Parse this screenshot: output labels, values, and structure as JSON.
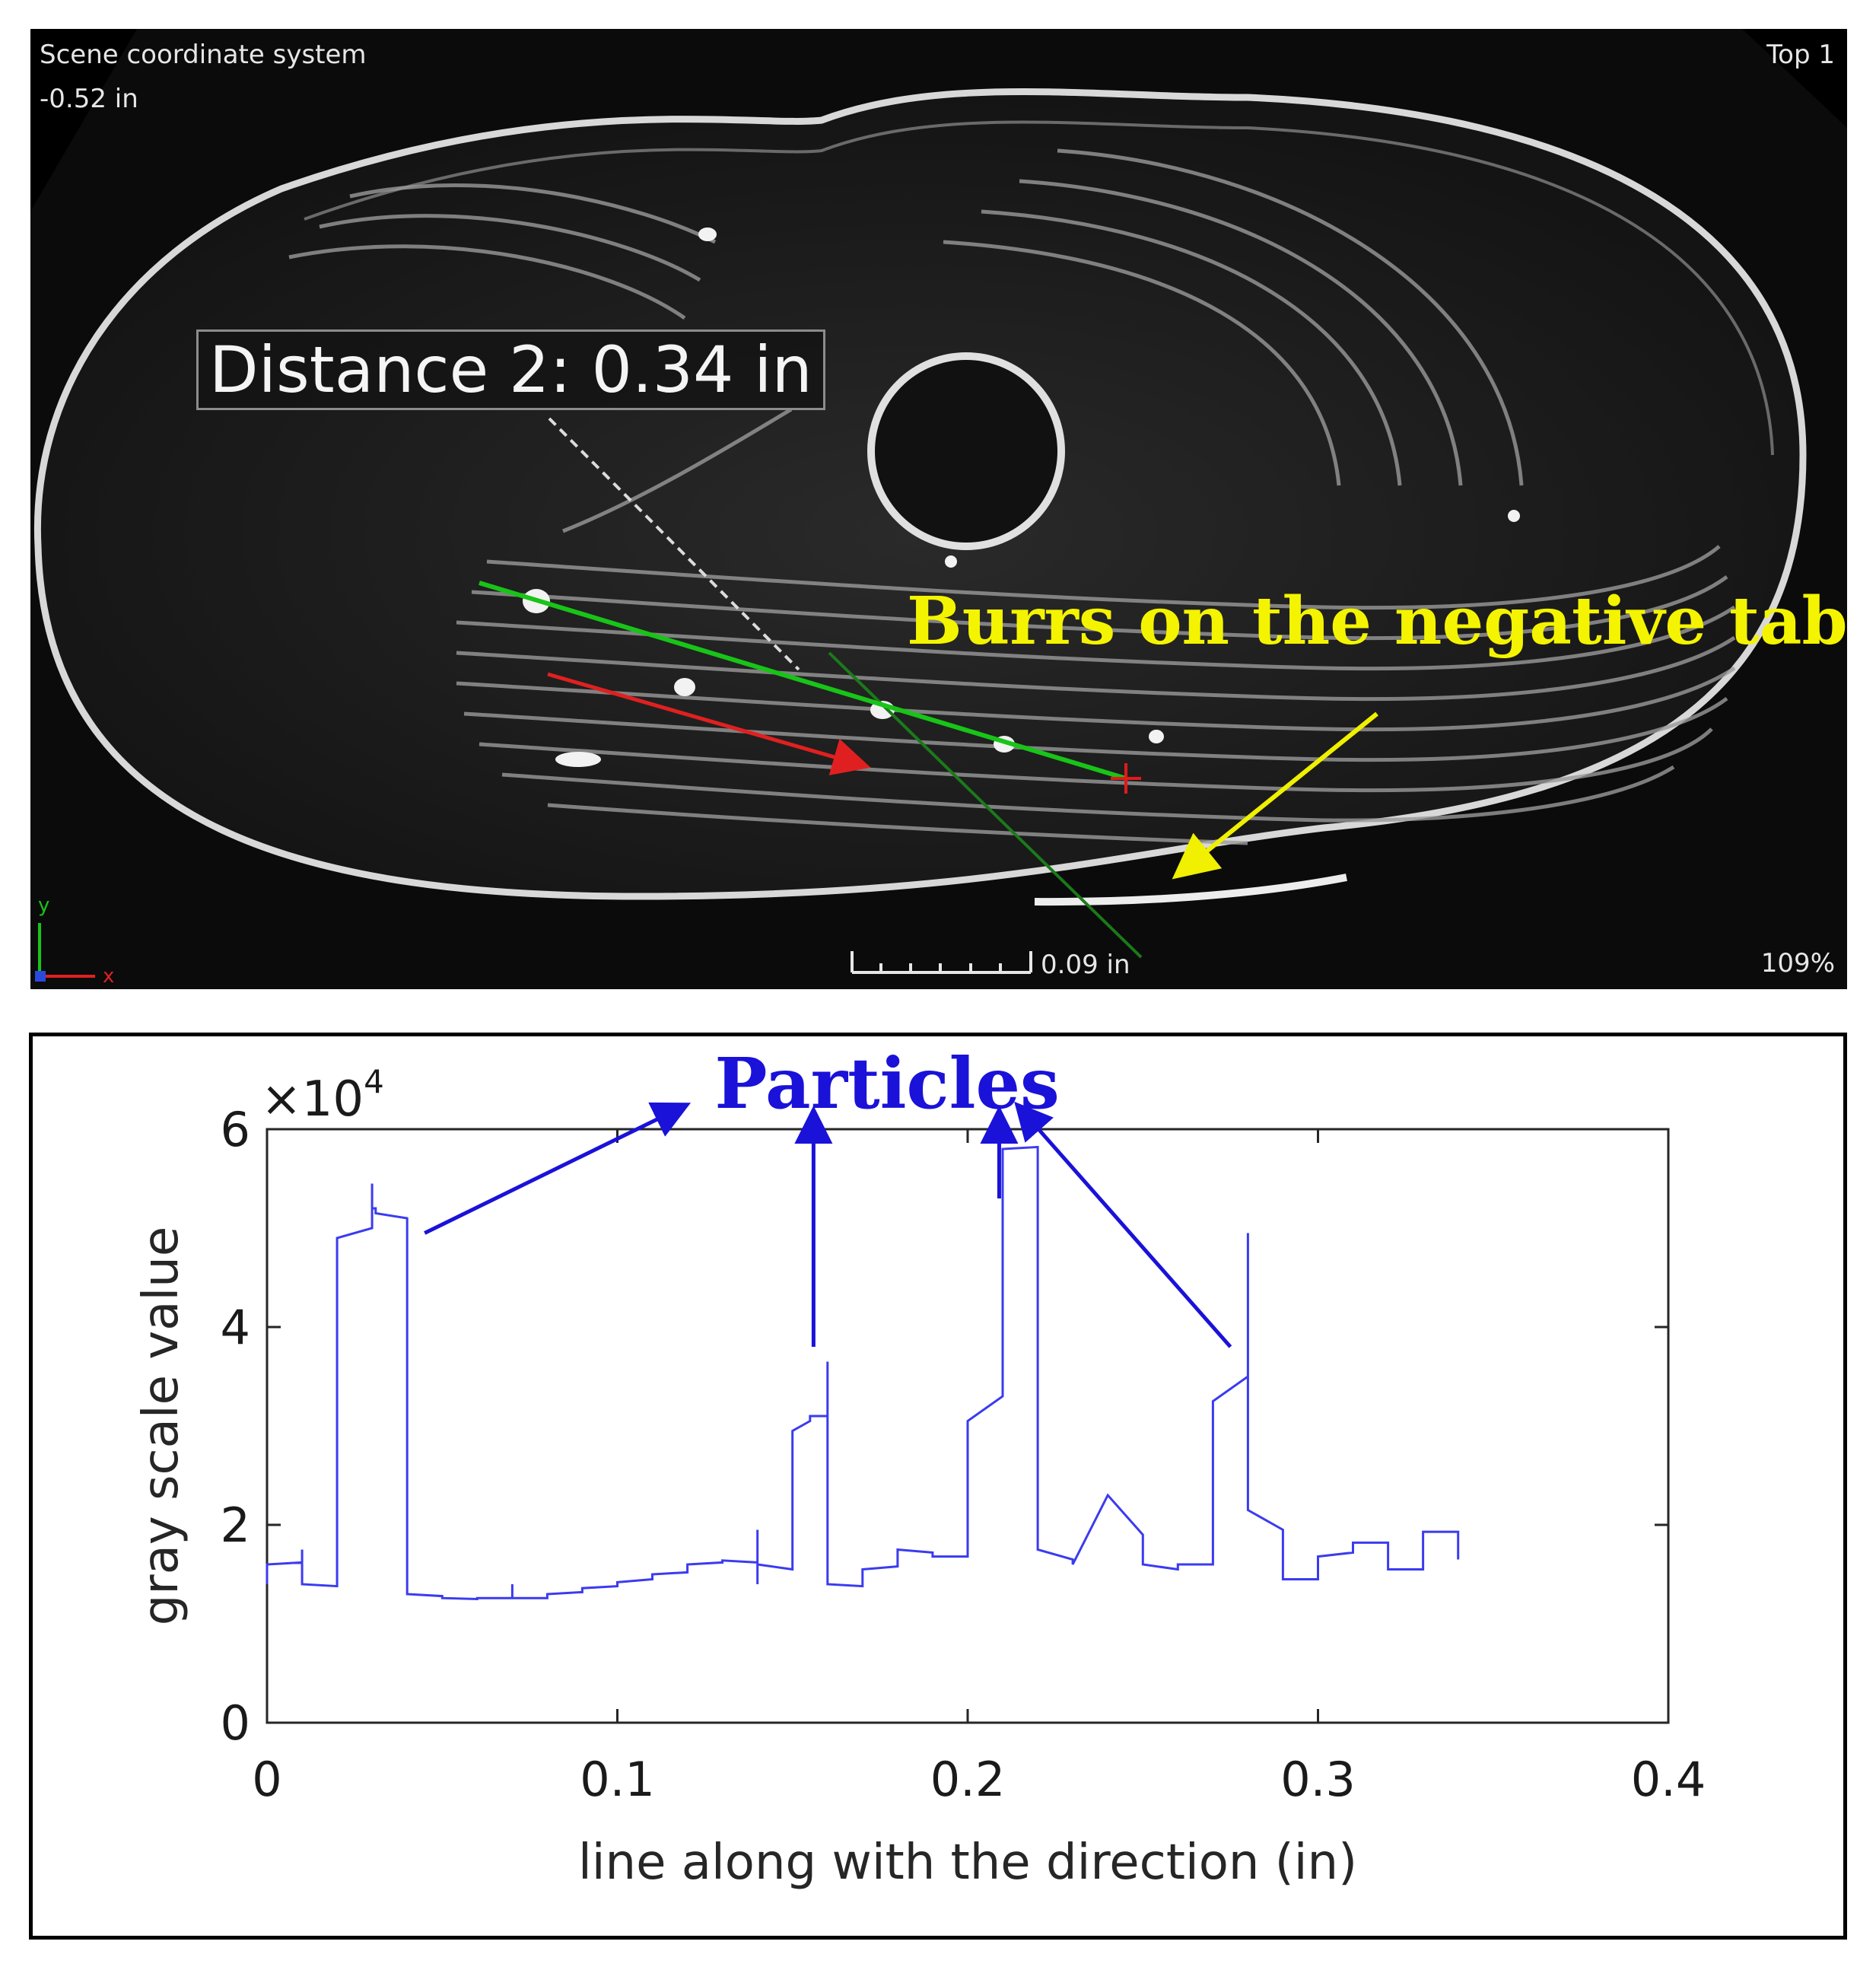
{
  "viewer": {
    "scene_title": "Scene coordinate system",
    "scene_coord": "-0.52 in",
    "view_name": "Top 1",
    "zoom": "109%",
    "scale_bar": "0.09 in",
    "distance_label": "Distance 2: 0.34 in",
    "annotation": "Burrs on the negative tab",
    "axis_y": "y",
    "axis_x": "x",
    "colors": {
      "background": "#0b0b0b",
      "annotation": "#f4f400",
      "measure_line": "#18c418",
      "arrow_red": "#d41a1a"
    }
  },
  "chart_data": {
    "type": "line",
    "title": "",
    "xlabel": "line along with the direction (in)",
    "ylabel": "gray scale value",
    "y_multiplier": "×10^4",
    "y_multiplier_base": "×10",
    "y_multiplier_exp": "4",
    "annotation": "Particles",
    "xlim": [
      0,
      0.4
    ],
    "ylim": [
      0,
      6
    ],
    "x_ticks": [
      0,
      0.1,
      0.2,
      0.3,
      0.4
    ],
    "x_tick_labels": [
      "0",
      "0.1",
      "0.2",
      "0.3",
      "0.4"
    ],
    "y_ticks": [
      0,
      2,
      4,
      6
    ],
    "y_tick_labels": [
      "0",
      "2",
      "4",
      "6"
    ],
    "series_color": "#3b3bf0",
    "series": [
      {
        "x": [
          0,
          0,
          0.01,
          0.01,
          0.01,
          0.01,
          0.02,
          0.02,
          0.03,
          0.03,
          0.03,
          0.031,
          0.031,
          0.04,
          0.04,
          0.04,
          0.05,
          0.05,
          0.06,
          0.06,
          0.07,
          0.07,
          0.07,
          0.08,
          0.08,
          0.09,
          0.09,
          0.1,
          0.1,
          0.11,
          0.11,
          0.12,
          0.12,
          0.13,
          0.13,
          0.14,
          0.14,
          0.14,
          0.14,
          0.15,
          0.15,
          0.155,
          0.155,
          0.16,
          0.16,
          0.16,
          0.17,
          0.17,
          0.18,
          0.18,
          0.19,
          0.19,
          0.2,
          0.2,
          0.21,
          0.21,
          0.22,
          0.22,
          0.23,
          0.23,
          0.24,
          0.24,
          0.25,
          0.25,
          0.26,
          0.26,
          0.27,
          0.27,
          0.28,
          0.28,
          0.28,
          0.28,
          0.29,
          0.29,
          0.3,
          0.3,
          0.31,
          0.31,
          0.32,
          0.32,
          0.33,
          0.33,
          0.34,
          0.34
        ],
        "y": [
          1.4,
          1.6,
          1.62,
          1.75,
          1.5,
          1.4,
          1.38,
          4.9,
          5.0,
          5.45,
          5.2,
          5.2,
          5.15,
          5.1,
          1.3,
          1.3,
          1.28,
          1.26,
          1.25,
          1.26,
          1.26,
          1.4,
          1.26,
          1.26,
          1.3,
          1.32,
          1.36,
          1.38,
          1.42,
          1.45,
          1.5,
          1.52,
          1.6,
          1.62,
          1.64,
          1.62,
          1.95,
          1.4,
          1.6,
          1.55,
          2.95,
          3.05,
          3.1,
          3.1,
          3.65,
          1.4,
          1.38,
          1.55,
          1.58,
          1.75,
          1.72,
          1.68,
          1.68,
          3.05,
          3.3,
          5.8,
          5.82,
          1.75,
          1.65,
          1.6,
          2.3,
          2.3,
          1.9,
          1.6,
          1.55,
          1.6,
          1.6,
          3.25,
          3.5,
          4.95,
          3.5,
          2.15,
          1.95,
          1.45,
          1.45,
          1.68,
          1.72,
          1.82,
          1.82,
          1.55,
          1.55,
          1.93,
          1.93,
          1.65
        ]
      }
    ],
    "particle_arrows": [
      {
        "from": [
          0.045,
          4.95
        ],
        "to": [
          0.12,
          6.25
        ]
      },
      {
        "from": [
          0.156,
          3.8
        ],
        "to": [
          0.156,
          6.2
        ]
      },
      {
        "from": [
          0.209,
          5.3
        ],
        "to": [
          0.209,
          6.2
        ]
      },
      {
        "from": [
          0.275,
          3.8
        ],
        "to": [
          0.214,
          6.25
        ]
      }
    ]
  }
}
